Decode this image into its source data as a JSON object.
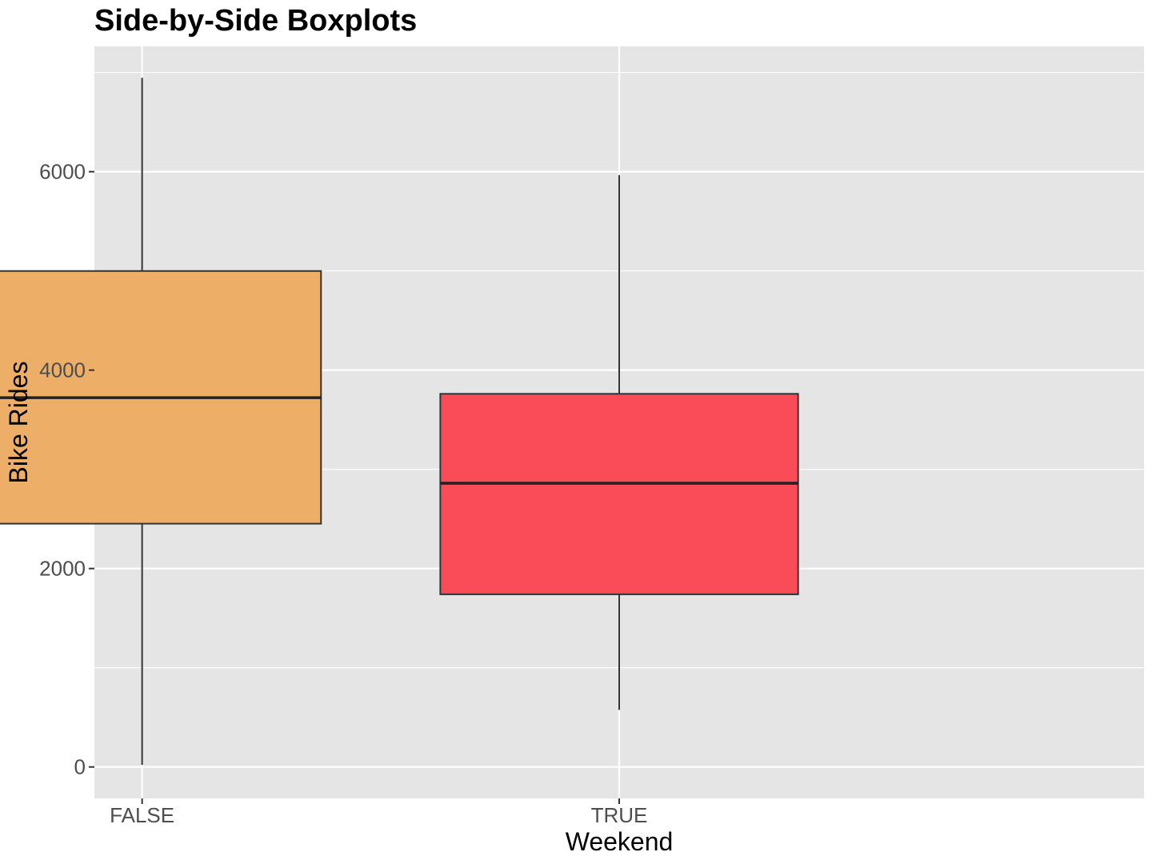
{
  "chart_data": {
    "type": "boxplot",
    "title": "Side-by-Side Boxplots",
    "xlabel": "Weekend",
    "ylabel": "Bike Rides",
    "categories": [
      "FALSE",
      "TRUE"
    ],
    "boxes": [
      {
        "category": "FALSE",
        "min": 22,
        "q1": 2452,
        "median": 3722,
        "q3": 4999,
        "max": 6946,
        "fill": "#EDAE68"
      },
      {
        "category": "TRUE",
        "min": 575,
        "q1": 1740,
        "median": 2860,
        "q3": 3761,
        "max": 5966,
        "fill": "#FA4C58"
      }
    ],
    "yticks": [
      0,
      2000,
      4000,
      6000
    ],
    "ylim": [
      -317,
      7263
    ],
    "grid": true,
    "colors": {
      "panel_background": "#E5E5E5",
      "grid_major": "#FFFFFF",
      "box_outline": "#333333",
      "tick_label": "#4D4D4D"
    }
  }
}
